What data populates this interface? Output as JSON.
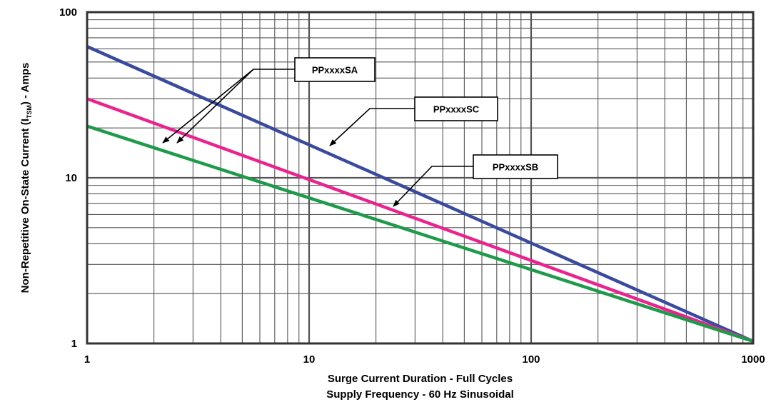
{
  "chart_data": {
    "type": "line",
    "xscale": "log",
    "yscale": "log",
    "xlim": [
      1,
      1000
    ],
    "ylim": [
      1,
      100
    ],
    "xticks": [
      1,
      10,
      100,
      1000
    ],
    "yticks": [
      1,
      10,
      100
    ],
    "xtick_labels": [
      "1",
      "10",
      "100",
      "1000"
    ],
    "ytick_labels": [
      "1",
      "10",
      "100"
    ],
    "xlabel": "Surge Current Duration - Full Cycles",
    "xlabel2": "Supply Frequency - 60 Hz Sinusoidal",
    "ylabel": {
      "prefix": "Non-Repetitive On-State Current (I",
      "subscript": "TSM",
      "suffix": ") - Amps"
    },
    "grid": true,
    "series": [
      {
        "name": "PPxxxxSC",
        "color": "#3a4a9c",
        "x": [
          1,
          1000
        ],
        "y": [
          62,
          1.03
        ]
      },
      {
        "name": "PPxxxxSA",
        "color": "#e8258f",
        "x": [
          1,
          1000
        ],
        "y": [
          30,
          1.03
        ]
      },
      {
        "name": "PPxxxxSB",
        "color": "#1f9a4a",
        "x": [
          1,
          1000
        ],
        "y": [
          20.5,
          1.03
        ]
      }
    ],
    "annotations": [
      {
        "text": "PPxxxxSA"
      },
      {
        "text": "PPxxxxSC"
      },
      {
        "text": "PPxxxxSB"
      }
    ]
  }
}
